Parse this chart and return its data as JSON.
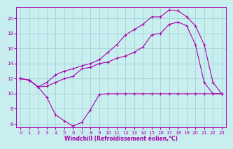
{
  "xlabel": "Windchill (Refroidissement éolien,°C)",
  "xlim": [
    -0.5,
    23.5
  ],
  "ylim": [
    5.5,
    21.5
  ],
  "yticks": [
    6,
    8,
    10,
    12,
    14,
    16,
    18,
    20
  ],
  "xticks": [
    0,
    1,
    2,
    3,
    4,
    5,
    6,
    7,
    8,
    9,
    10,
    11,
    12,
    13,
    14,
    15,
    16,
    17,
    18,
    19,
    20,
    21,
    22,
    23
  ],
  "bg_color": "#c8eef0",
  "line_color": "#aa00aa",
  "grid_color": "#9ecece",
  "line1_x": [
    0,
    1,
    2,
    3,
    4,
    5,
    6,
    7,
    8,
    9,
    10,
    11,
    12,
    13,
    14,
    15,
    16,
    17,
    18,
    19,
    20,
    21,
    22,
    23
  ],
  "line1_y": [
    12.0,
    11.8,
    10.9,
    9.5,
    7.2,
    6.4,
    5.7,
    6.2,
    7.9,
    9.9,
    10.0,
    10.0,
    10.0,
    10.0,
    10.0,
    10.0,
    10.0,
    10.0,
    10.0,
    10.0,
    10.0,
    10.0,
    10.0,
    10.0
  ],
  "line2_x": [
    0,
    1,
    2,
    3,
    4,
    5,
    6,
    7,
    8,
    9,
    10,
    11,
    12,
    13,
    14,
    15,
    16,
    17,
    18,
    19,
    20,
    21,
    22,
    23
  ],
  "line2_y": [
    12.0,
    11.8,
    10.9,
    11.0,
    11.5,
    12.0,
    12.3,
    13.3,
    13.5,
    14.0,
    14.2,
    14.7,
    15.0,
    15.5,
    16.2,
    17.8,
    18.0,
    19.2,
    19.5,
    19.0,
    16.5,
    11.5,
    10.0,
    10.0
  ],
  "line3_x": [
    0,
    1,
    2,
    3,
    4,
    5,
    6,
    7,
    8,
    9,
    10,
    11,
    12,
    13,
    14,
    15,
    16,
    17,
    18,
    19,
    20,
    21,
    22,
    23
  ],
  "line3_y": [
    12.0,
    11.8,
    10.9,
    11.5,
    12.5,
    13.0,
    13.3,
    13.7,
    14.0,
    14.5,
    15.5,
    16.5,
    17.8,
    18.5,
    19.2,
    20.2,
    20.2,
    21.1,
    21.0,
    20.2,
    19.0,
    16.5,
    11.5,
    10.0
  ]
}
